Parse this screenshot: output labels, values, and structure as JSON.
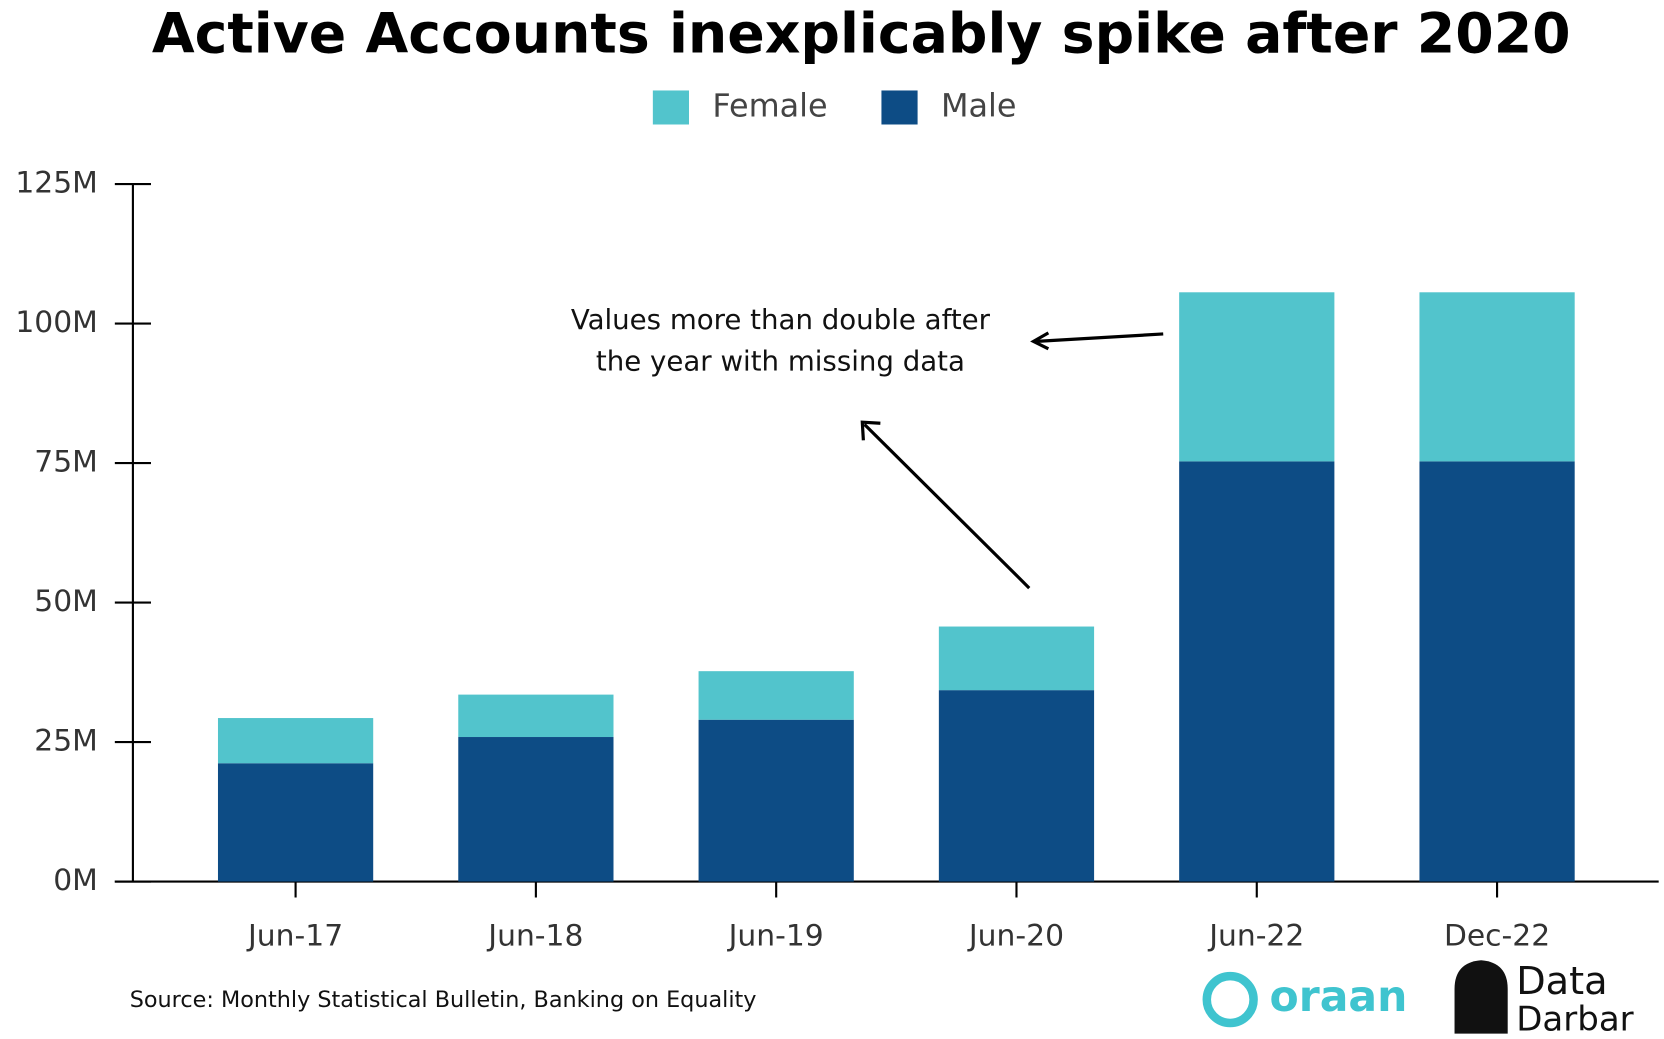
{
  "chart_data": {
    "type": "stacked-bar",
    "title": "Active Accounts inexplicably spike after 2020",
    "categories": [
      "Jun-17",
      "Jun-18",
      "Jun-19",
      "Jun-20",
      "Jun-22",
      "Dec-22"
    ],
    "series": [
      {
        "name": "Female",
        "color": "#52c4cc",
        "values": [
          8.1,
          7.6,
          8.7,
          11.4,
          30.3,
          30.3
        ]
      },
      {
        "name": "Male",
        "color": "#0d4c85",
        "values": [
          21.2,
          25.9,
          29,
          34.3,
          75.3,
          75.3
        ]
      }
    ],
    "stack_order": [
      "Male",
      "Female"
    ],
    "ylim": [
      0,
      125
    ],
    "yticks": [
      {
        "value": 0,
        "label": "0M"
      },
      {
        "value": 25,
        "label": "25M"
      },
      {
        "value": 50,
        "label": "50M"
      },
      {
        "value": 75,
        "label": "75M"
      },
      {
        "value": 100,
        "label": "100M"
      },
      {
        "value": 125,
        "label": "125M"
      }
    ],
    "annotation": [
      "Values more than double after",
      "the year with missing data"
    ],
    "source": "Source: Monthly Statistical Bulletin, Banking on Equality",
    "logos": [
      "oraan",
      "Data",
      "Darbar"
    ]
  }
}
